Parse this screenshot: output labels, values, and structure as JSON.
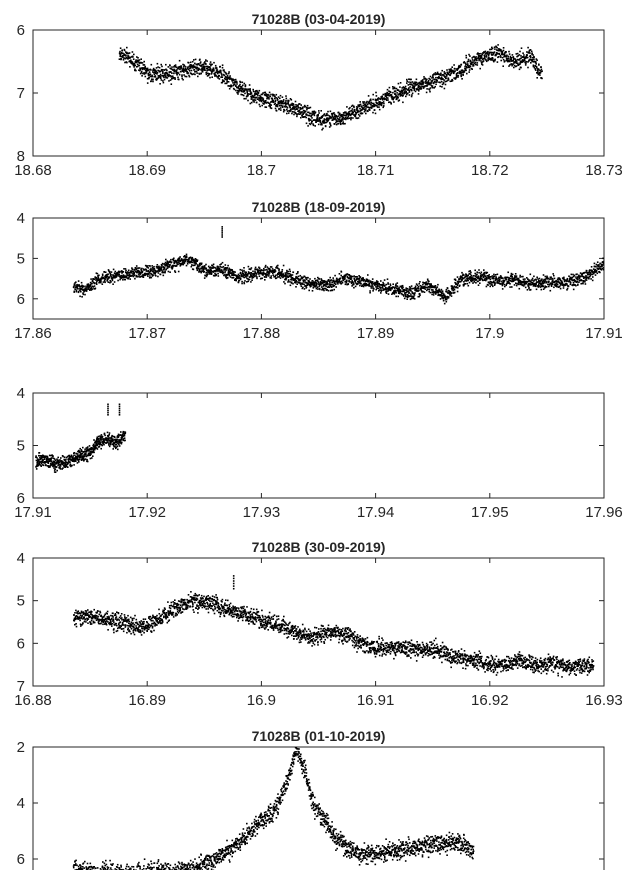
{
  "chart_data": [
    {
      "type": "scatter",
      "title": "71028B (03-04-2019)",
      "xlim": [
        18.68,
        18.73
      ],
      "ylim": [
        6,
        8
      ],
      "y_reversed": true,
      "xticks": [
        "18.68",
        "18.69",
        "18.7",
        "18.71",
        "18.72",
        "18.73"
      ],
      "yticks": [
        "6",
        "7",
        "8"
      ],
      "grid": false,
      "points": [
        [
          18.6875,
          6.35
        ],
        [
          18.6885,
          6.45
        ],
        [
          18.6895,
          6.6
        ],
        [
          18.6905,
          6.7
        ],
        [
          18.692,
          6.68
        ],
        [
          18.6935,
          6.6
        ],
        [
          18.695,
          6.58
        ],
        [
          18.6965,
          6.7
        ],
        [
          18.698,
          6.88
        ],
        [
          18.6995,
          7.05
        ],
        [
          18.701,
          7.12
        ],
        [
          18.7025,
          7.2
        ],
        [
          18.704,
          7.35
        ],
        [
          18.7055,
          7.42
        ],
        [
          18.707,
          7.38
        ],
        [
          18.7085,
          7.25
        ],
        [
          18.71,
          7.15
        ],
        [
          18.7115,
          7.02
        ],
        [
          18.713,
          6.9
        ],
        [
          18.7145,
          6.83
        ],
        [
          18.716,
          6.75
        ],
        [
          18.7175,
          6.62
        ],
        [
          18.719,
          6.42
        ],
        [
          18.7205,
          6.35
        ],
        [
          18.722,
          6.48
        ],
        [
          18.7235,
          6.42
        ],
        [
          18.7245,
          6.7
        ]
      ]
    },
    {
      "type": "scatter",
      "title": "71028B (18-09-2019)",
      "xlim": [
        17.86,
        17.91
      ],
      "ylim": [
        4,
        6.5
      ],
      "y_reversed": true,
      "xticks": [
        "17.86",
        "17.87",
        "17.88",
        "17.89",
        "17.9",
        "17.91"
      ],
      "yticks": [
        "4",
        "5",
        "6"
      ],
      "grid": false,
      "points": [
        [
          17.8635,
          5.7
        ],
        [
          17.8645,
          5.75
        ],
        [
          17.866,
          5.45
        ],
        [
          17.8675,
          5.4
        ],
        [
          17.869,
          5.35
        ],
        [
          17.8705,
          5.3
        ],
        [
          17.872,
          5.15
        ],
        [
          17.8735,
          5.0
        ],
        [
          17.875,
          5.3
        ],
        [
          17.8765,
          5.25
        ],
        [
          17.878,
          5.45
        ],
        [
          17.8795,
          5.35
        ],
        [
          17.881,
          5.3
        ],
        [
          17.8825,
          5.45
        ],
        [
          17.884,
          5.6
        ],
        [
          17.8855,
          5.65
        ],
        [
          17.887,
          5.5
        ],
        [
          17.8885,
          5.55
        ],
        [
          17.89,
          5.65
        ],
        [
          17.8915,
          5.75
        ],
        [
          17.893,
          5.85
        ],
        [
          17.8945,
          5.65
        ],
        [
          17.896,
          5.95
        ],
        [
          17.8975,
          5.5
        ],
        [
          17.899,
          5.45
        ],
        [
          17.9005,
          5.55
        ],
        [
          17.902,
          5.5
        ],
        [
          17.9035,
          5.6
        ],
        [
          17.905,
          5.55
        ],
        [
          17.9065,
          5.6
        ],
        [
          17.908,
          5.5
        ],
        [
          17.909,
          5.3
        ],
        [
          17.91,
          5.1
        ]
      ],
      "outliers": [
        [
          17.8765,
          4.2
        ]
      ]
    },
    {
      "type": "scatter",
      "title": "",
      "xlim": [
        17.91,
        17.96
      ],
      "ylim": [
        4,
        6
      ],
      "y_reversed": true,
      "xticks": [
        "17.91",
        "17.92",
        "17.93",
        "17.94",
        "17.95",
        "17.96"
      ],
      "yticks": [
        "4",
        "5",
        "6"
      ],
      "grid": false,
      "points": [
        [
          17.9102,
          5.3
        ],
        [
          17.911,
          5.25
        ],
        [
          17.912,
          5.35
        ],
        [
          17.913,
          5.3
        ],
        [
          17.914,
          5.2
        ],
        [
          17.915,
          5.1
        ],
        [
          17.9158,
          4.9
        ],
        [
          17.9165,
          4.85
        ],
        [
          17.9172,
          4.95
        ],
        [
          17.918,
          4.8
        ]
      ],
      "outliers": [
        [
          17.9165,
          4.2
        ],
        [
          17.9175,
          4.2
        ]
      ]
    },
    {
      "type": "scatter",
      "title": "71028B (30-09-2019)",
      "xlim": [
        16.88,
        16.93
      ],
      "ylim": [
        4,
        7
      ],
      "y_reversed": true,
      "xticks": [
        "16.88",
        "16.89",
        "16.9",
        "16.91",
        "16.92",
        "16.93"
      ],
      "yticks": [
        "4",
        "5",
        "6",
        "7"
      ],
      "grid": false,
      "points": [
        [
          16.8835,
          5.4
        ],
        [
          16.885,
          5.35
        ],
        [
          16.8865,
          5.45
        ],
        [
          16.888,
          5.5
        ],
        [
          16.8895,
          5.6
        ],
        [
          16.891,
          5.4
        ],
        [
          16.8925,
          5.15
        ],
        [
          16.894,
          5.0
        ],
        [
          16.8955,
          5.05
        ],
        [
          16.897,
          5.2
        ],
        [
          16.8985,
          5.3
        ],
        [
          16.9,
          5.45
        ],
        [
          16.9015,
          5.55
        ],
        [
          16.903,
          5.75
        ],
        [
          16.9045,
          5.85
        ],
        [
          16.906,
          5.7
        ],
        [
          16.9075,
          5.8
        ],
        [
          16.909,
          6.05
        ],
        [
          16.9105,
          6.1
        ],
        [
          16.912,
          6.05
        ],
        [
          16.9135,
          6.15
        ],
        [
          16.915,
          6.1
        ],
        [
          16.9165,
          6.3
        ],
        [
          16.918,
          6.35
        ],
        [
          16.9195,
          6.45
        ],
        [
          16.921,
          6.5
        ],
        [
          16.9225,
          6.4
        ],
        [
          16.924,
          6.5
        ],
        [
          16.9255,
          6.45
        ],
        [
          16.927,
          6.55
        ],
        [
          16.929,
          6.5
        ]
      ],
      "outliers": [
        [
          16.8975,
          4.4
        ]
      ]
    },
    {
      "type": "scatter",
      "title": "71028B (01-10-2019)",
      "xlim": [
        16.88,
        16.93
      ],
      "ylim": [
        2,
        7
      ],
      "y_reversed": true,
      "xticks": [],
      "yticks": [
        "2",
        "4",
        "6"
      ],
      "grid": false,
      "points": [
        [
          16.8835,
          6.3
        ],
        [
          16.885,
          6.45
        ],
        [
          16.8865,
          6.45
        ],
        [
          16.888,
          6.5
        ],
        [
          16.8895,
          6.45
        ],
        [
          16.891,
          6.4
        ],
        [
          16.8925,
          6.45
        ],
        [
          16.894,
          6.3
        ],
        [
          16.8955,
          6.1
        ],
        [
          16.897,
          5.7
        ],
        [
          16.8985,
          5.2
        ],
        [
          16.9,
          4.6
        ],
        [
          16.9012,
          4.2
        ],
        [
          16.9022,
          3.2
        ],
        [
          16.903,
          2.1
        ],
        [
          16.9038,
          2.9
        ],
        [
          16.9045,
          4.1
        ],
        [
          16.9055,
          4.6
        ],
        [
          16.9065,
          5.3
        ],
        [
          16.908,
          5.75
        ],
        [
          16.9095,
          5.8
        ],
        [
          16.911,
          5.7
        ],
        [
          16.9125,
          5.6
        ],
        [
          16.914,
          5.55
        ],
        [
          16.9155,
          5.45
        ],
        [
          16.917,
          5.35
        ],
        [
          16.9185,
          5.7
        ]
      ]
    }
  ]
}
